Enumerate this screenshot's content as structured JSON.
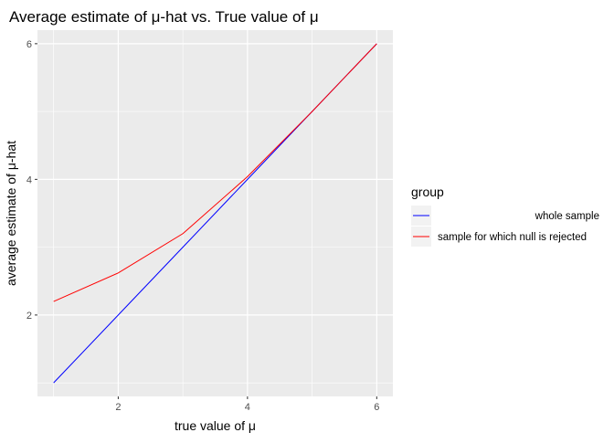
{
  "chart_data": {
    "type": "line",
    "title": "Average estimate of μ-hat vs. True value of μ",
    "xlabel": "true value of μ",
    "ylabel": "average estimate of μ-hat",
    "xlim": [
      0.75,
      6.25
    ],
    "ylim": [
      0.8,
      6.2
    ],
    "x_ticks": [
      2,
      4,
      6
    ],
    "y_ticks": [
      2,
      4,
      6
    ],
    "x_tick_labels": [
      "2",
      "4",
      "6"
    ],
    "y_tick_labels": [
      "2",
      "4",
      "6"
    ],
    "grid": true,
    "legend": {
      "title": "group",
      "position": "right"
    },
    "series": [
      {
        "name": "whole sample",
        "color": "#0000FF",
        "x": [
          1,
          2,
          3,
          4,
          5,
          6
        ],
        "y": [
          1.0,
          2.0,
          3.0,
          4.0,
          5.0,
          6.0
        ]
      },
      {
        "name": "sample for which null is rejected",
        "color": "#FF0000",
        "x": [
          1,
          2,
          3,
          4,
          5,
          6
        ],
        "y": [
          2.2,
          2.62,
          3.2,
          4.04,
          5.0,
          6.0
        ]
      }
    ]
  },
  "colors": {
    "panel_background": "#EBEBEB",
    "grid_major": "#FFFFFF",
    "axis_text": "#4D4D4D",
    "title_text": "#000000"
  }
}
